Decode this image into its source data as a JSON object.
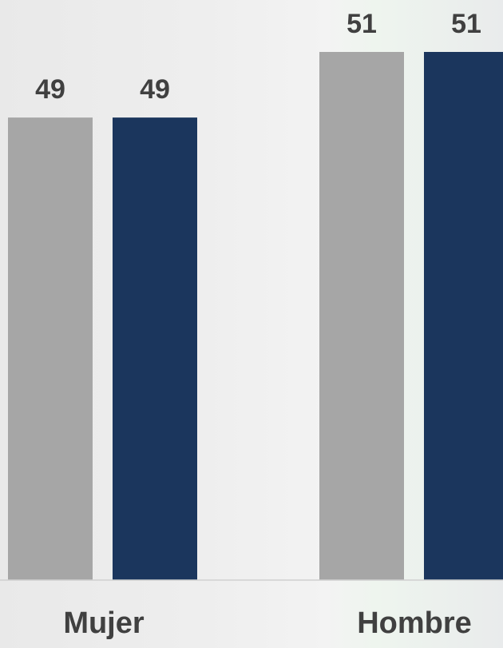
{
  "chart_data": {
    "type": "bar",
    "categories": [
      "Mujer",
      "Hombre"
    ],
    "series": [
      {
        "values": [
          49,
          51
        ],
        "color": "#a6a6a6"
      },
      {
        "values": [
          49,
          51
        ],
        "color": "#1b365d"
      }
    ],
    "data_labels": [
      [
        "49",
        "51"
      ],
      [
        "49",
        "51"
      ]
    ],
    "ylim": [
      0,
      51
    ],
    "axis_color": "#d0d0d0",
    "text_color": "#404040",
    "grid": false,
    "legend": "none"
  }
}
